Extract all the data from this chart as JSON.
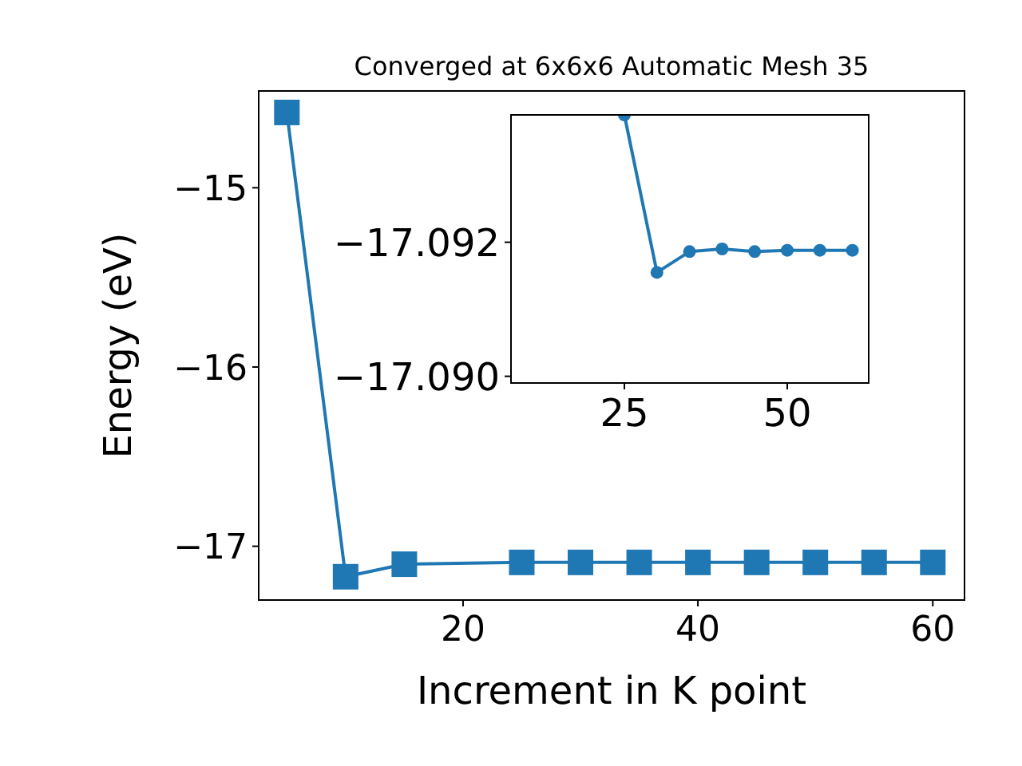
{
  "chart_data": [
    {
      "type": "line",
      "title": "Converged at 6x6x6 Automatic Mesh 35",
      "xlabel": "Increment in K point",
      "ylabel": "Energy (eV)",
      "x": [
        5,
        10,
        15,
        25,
        30,
        35,
        40,
        45,
        50,
        55,
        60
      ],
      "series": [
        {
          "color": "#1f77b4",
          "values": [
            -14.58,
            -17.17,
            -17.1,
            -17.09,
            -17.09,
            -17.09,
            -17.09,
            -17.09,
            -17.09,
            -17.09,
            -17.09
          ]
        }
      ],
      "xlim": [
        2.6,
        62.7
      ],
      "ylim": [
        -17.3,
        -14.46
      ],
      "xticks": [
        20,
        40,
        60
      ],
      "yticks": [
        -15,
        -16,
        -17
      ],
      "marker": "square",
      "grid": false
    },
    {
      "type": "line",
      "x": [
        25,
        30,
        35,
        40,
        45,
        50,
        55,
        60
      ],
      "series": [
        {
          "color": "#1f77b4",
          "values": [
            -17.0939,
            -17.09155,
            -17.09186,
            -17.0919,
            -17.09186,
            -17.09188,
            -17.09188,
            -17.09188
          ]
        }
      ],
      "xlim": [
        7.6,
        62.5
      ],
      "ylim": [
        -17.0899,
        -17.0939
      ],
      "xticks": [
        25,
        50
      ],
      "yticks": [
        -17.092,
        {
          "value": -17.09,
          "label": "−17.090"
        }
      ],
      "marker": "circle",
      "grid": false
    }
  ]
}
